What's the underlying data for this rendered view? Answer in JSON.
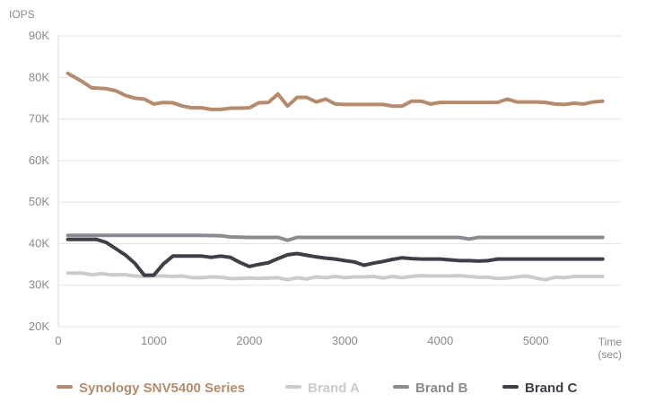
{
  "chart_data": {
    "type": "line",
    "ylabel": "IOPS",
    "xlabel_lines": [
      "Time",
      "(sec)"
    ],
    "xlim": [
      0,
      5900
    ],
    "ylim": [
      20000,
      90000
    ],
    "x_ticks": [
      0,
      1000,
      2000,
      3000,
      4000,
      5000
    ],
    "x_tick_labels": [
      "0",
      "1000",
      "2000",
      "3000",
      "4000",
      "5000"
    ],
    "y_ticks": [
      20000,
      30000,
      40000,
      50000,
      60000,
      70000,
      80000,
      90000
    ],
    "y_tick_labels": [
      "20K",
      "30K",
      "40K",
      "50K",
      "60K",
      "70K",
      "80K",
      "90K"
    ],
    "grid": "horizontal",
    "legend_position": "bottom",
    "series": [
      {
        "name": "Synology SNV5400 Series",
        "color": "#b58b6e",
        "points": [
          [
            100,
            81000
          ],
          [
            250,
            79000
          ],
          [
            350,
            77500
          ],
          [
            500,
            77300
          ],
          [
            600,
            76800
          ],
          [
            700,
            75700
          ],
          [
            800,
            75000
          ],
          [
            900,
            74800
          ],
          [
            1000,
            73600
          ],
          [
            1100,
            74000
          ],
          [
            1200,
            73900
          ],
          [
            1300,
            73100
          ],
          [
            1400,
            72700
          ],
          [
            1500,
            72700
          ],
          [
            1600,
            72300
          ],
          [
            1700,
            72300
          ],
          [
            1800,
            72600
          ],
          [
            1900,
            72600
          ],
          [
            2000,
            72700
          ],
          [
            2100,
            73900
          ],
          [
            2200,
            74000
          ],
          [
            2300,
            76000
          ],
          [
            2400,
            73100
          ],
          [
            2500,
            75200
          ],
          [
            2600,
            75200
          ],
          [
            2700,
            74100
          ],
          [
            2800,
            74800
          ],
          [
            2900,
            73600
          ],
          [
            3000,
            73500
          ],
          [
            3200,
            73500
          ],
          [
            3400,
            73500
          ],
          [
            3500,
            73100
          ],
          [
            3600,
            73100
          ],
          [
            3700,
            74300
          ],
          [
            3800,
            74300
          ],
          [
            3900,
            73600
          ],
          [
            4000,
            74000
          ],
          [
            4200,
            74000
          ],
          [
            4400,
            74000
          ],
          [
            4600,
            74000
          ],
          [
            4700,
            74800
          ],
          [
            4800,
            74100
          ],
          [
            5000,
            74100
          ],
          [
            5100,
            74000
          ],
          [
            5200,
            73600
          ],
          [
            5300,
            73500
          ],
          [
            5400,
            73800
          ],
          [
            5500,
            73600
          ],
          [
            5600,
            74100
          ],
          [
            5700,
            74300
          ]
        ]
      },
      {
        "name": "Brand A",
        "color": "#cbcbcb",
        "points": [
          [
            100,
            32900
          ],
          [
            250,
            32900
          ],
          [
            350,
            32500
          ],
          [
            450,
            32800
          ],
          [
            550,
            32500
          ],
          [
            700,
            32500
          ],
          [
            800,
            32200
          ],
          [
            900,
            32100
          ],
          [
            1000,
            32200
          ],
          [
            1100,
            32200
          ],
          [
            1200,
            32100
          ],
          [
            1300,
            32200
          ],
          [
            1400,
            31800
          ],
          [
            1500,
            31800
          ],
          [
            1600,
            32000
          ],
          [
            1700,
            31900
          ],
          [
            1800,
            31600
          ],
          [
            1900,
            31600
          ],
          [
            2000,
            31700
          ],
          [
            2100,
            31600
          ],
          [
            2200,
            31700
          ],
          [
            2300,
            31800
          ],
          [
            2400,
            31300
          ],
          [
            2500,
            31800
          ],
          [
            2600,
            31500
          ],
          [
            2700,
            32000
          ],
          [
            2800,
            31800
          ],
          [
            2900,
            32100
          ],
          [
            3000,
            31800
          ],
          [
            3100,
            32000
          ],
          [
            3200,
            32000
          ],
          [
            3300,
            32100
          ],
          [
            3400,
            31700
          ],
          [
            3500,
            32100
          ],
          [
            3600,
            31800
          ],
          [
            3700,
            32100
          ],
          [
            3800,
            32300
          ],
          [
            3900,
            32200
          ],
          [
            4000,
            32200
          ],
          [
            4100,
            32200
          ],
          [
            4200,
            32300
          ],
          [
            4300,
            32100
          ],
          [
            4400,
            31900
          ],
          [
            4500,
            31900
          ],
          [
            4600,
            31600
          ],
          [
            4700,
            31700
          ],
          [
            4800,
            32000
          ],
          [
            4900,
            32200
          ],
          [
            5000,
            31700
          ],
          [
            5100,
            31300
          ],
          [
            5200,
            31900
          ],
          [
            5300,
            31800
          ],
          [
            5400,
            32100
          ],
          [
            5500,
            32100
          ],
          [
            5600,
            32100
          ],
          [
            5700,
            32100
          ]
        ]
      },
      {
        "name": "Brand B",
        "color": "#8a8b90",
        "points": [
          [
            100,
            42000
          ],
          [
            500,
            42000
          ],
          [
            1000,
            42000
          ],
          [
            1500,
            42000
          ],
          [
            1700,
            41900
          ],
          [
            1800,
            41600
          ],
          [
            2000,
            41500
          ],
          [
            2300,
            41500
          ],
          [
            2400,
            40800
          ],
          [
            2500,
            41500
          ],
          [
            3000,
            41500
          ],
          [
            3500,
            41500
          ],
          [
            4000,
            41500
          ],
          [
            4200,
            41500
          ],
          [
            4300,
            41100
          ],
          [
            4400,
            41500
          ],
          [
            5000,
            41500
          ],
          [
            5700,
            41500
          ]
        ]
      },
      {
        "name": "Brand C",
        "color": "#3e4048",
        "points": [
          [
            100,
            41000
          ],
          [
            400,
            41000
          ],
          [
            500,
            40300
          ],
          [
            600,
            38800
          ],
          [
            700,
            37300
          ],
          [
            800,
            35300
          ],
          [
            900,
            32400
          ],
          [
            1000,
            32400
          ],
          [
            1100,
            35100
          ],
          [
            1200,
            37000
          ],
          [
            1300,
            37000
          ],
          [
            1400,
            37000
          ],
          [
            1500,
            37000
          ],
          [
            1600,
            36700
          ],
          [
            1700,
            37000
          ],
          [
            1800,
            36700
          ],
          [
            1900,
            35500
          ],
          [
            2000,
            34500
          ],
          [
            2100,
            35000
          ],
          [
            2200,
            35400
          ],
          [
            2300,
            36400
          ],
          [
            2400,
            37300
          ],
          [
            2500,
            37600
          ],
          [
            2600,
            37200
          ],
          [
            2700,
            36800
          ],
          [
            2800,
            36500
          ],
          [
            2900,
            36300
          ],
          [
            3000,
            35900
          ],
          [
            3100,
            35600
          ],
          [
            3200,
            34800
          ],
          [
            3300,
            35300
          ],
          [
            3400,
            35700
          ],
          [
            3500,
            36200
          ],
          [
            3600,
            36600
          ],
          [
            3700,
            36400
          ],
          [
            3800,
            36300
          ],
          [
            4000,
            36300
          ],
          [
            4100,
            36100
          ],
          [
            4200,
            35900
          ],
          [
            4300,
            35900
          ],
          [
            4400,
            35800
          ],
          [
            4500,
            35900
          ],
          [
            4600,
            36300
          ],
          [
            4800,
            36300
          ],
          [
            5000,
            36300
          ],
          [
            5200,
            36300
          ],
          [
            5400,
            36300
          ],
          [
            5600,
            36300
          ],
          [
            5700,
            36300
          ]
        ]
      }
    ]
  }
}
